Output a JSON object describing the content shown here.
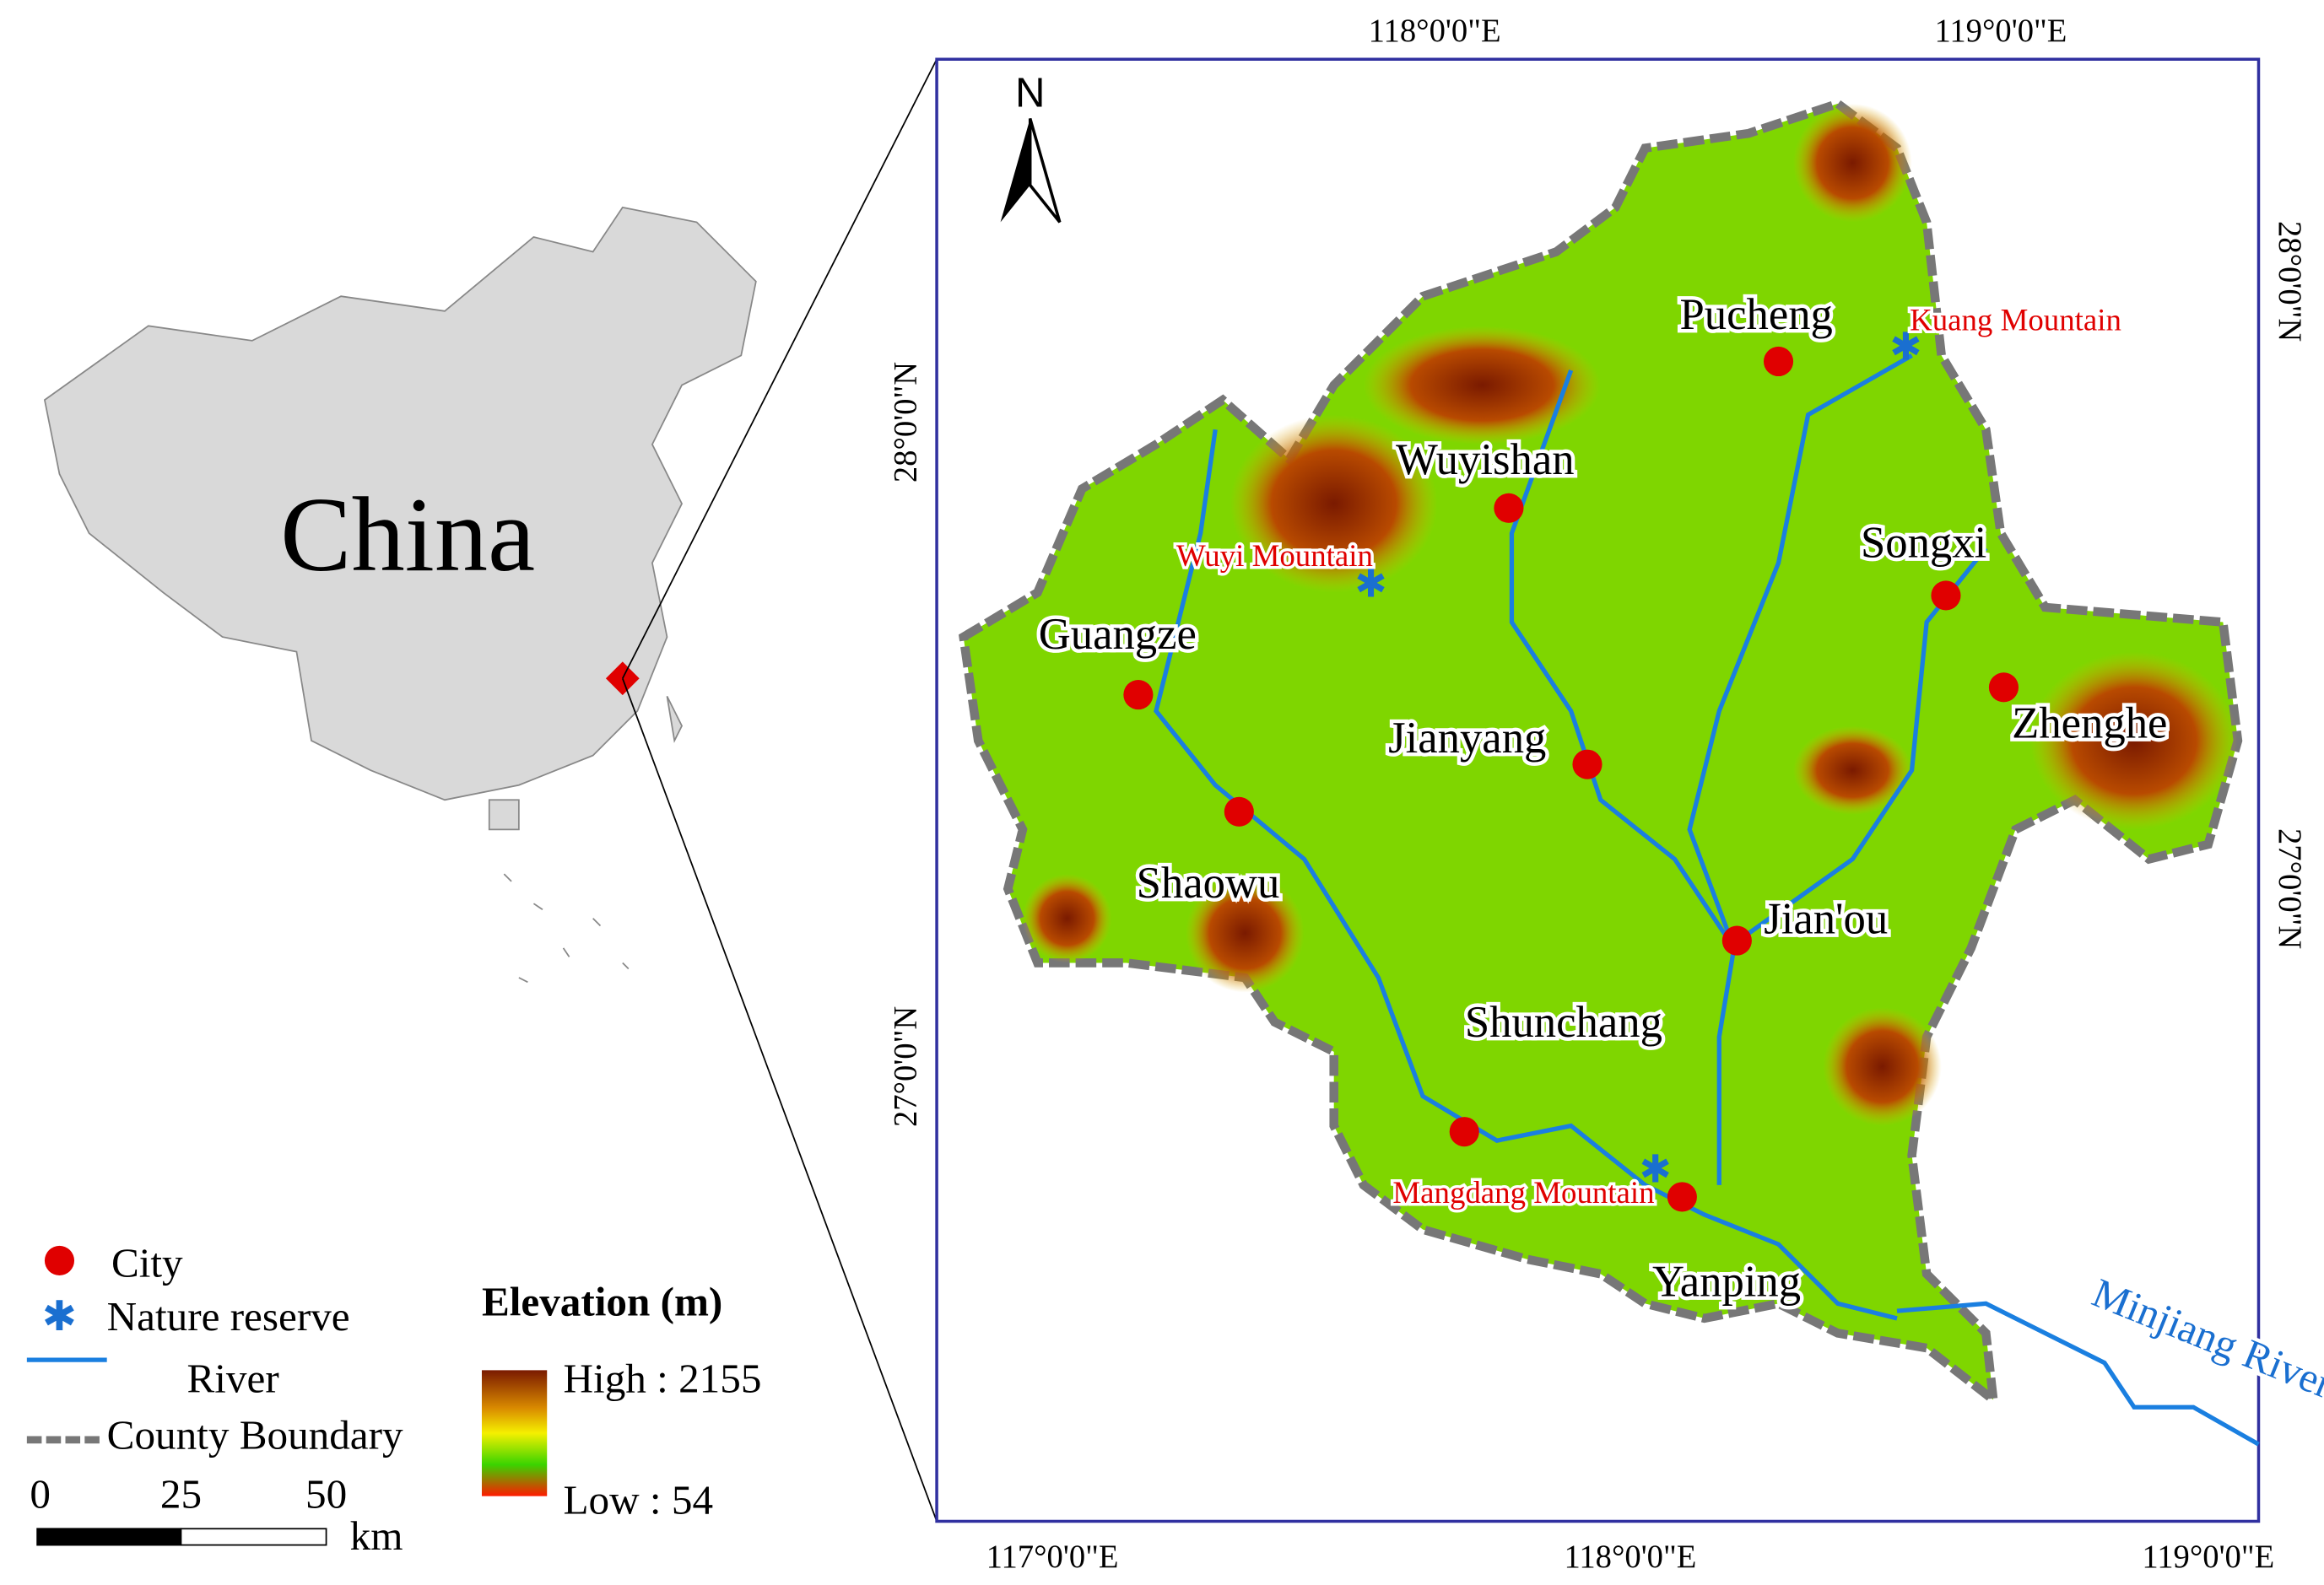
{
  "inset": {
    "label": "China"
  },
  "map": {
    "north": "N",
    "cities": [
      {
        "label": "Pucheng"
      },
      {
        "label": "Wuyishan"
      },
      {
        "label": "Songxi"
      },
      {
        "label": "Guangze"
      },
      {
        "label": "Zhenghe"
      },
      {
        "label": "Jianyang"
      },
      {
        "label": "Shaowu"
      },
      {
        "label": "Jian'ou"
      },
      {
        "label": "Shunchang"
      },
      {
        "label": "Yanping"
      }
    ],
    "reserves": [
      {
        "label": "Kuang Mountain"
      },
      {
        "label": "Wuyi Mountain"
      },
      {
        "label": "Mangdang Mountain"
      }
    ],
    "river": "Minjiang River",
    "lon_labels_top": [
      "118°0'0\"E",
      "119°0'0\"E"
    ],
    "lon_labels_bottom": [
      "117°0'0\"E",
      "118°0'0\"E",
      "119°0'0\"E"
    ],
    "lat_labels_left": [
      "28°0'0\"N",
      "27°0'0\"N"
    ],
    "lat_labels_right": [
      "28°0'0\"N",
      "27°0'0\"N"
    ]
  },
  "legend": {
    "items": [
      "City",
      "Nature reserve",
      "River",
      "County Boundary"
    ],
    "elevation_title": "Elevation (m)",
    "high": "High : 2155",
    "low": "Low : 54"
  },
  "scale_bar": {
    "ticks": [
      "0",
      "25",
      "50"
    ],
    "unit": "km"
  }
}
